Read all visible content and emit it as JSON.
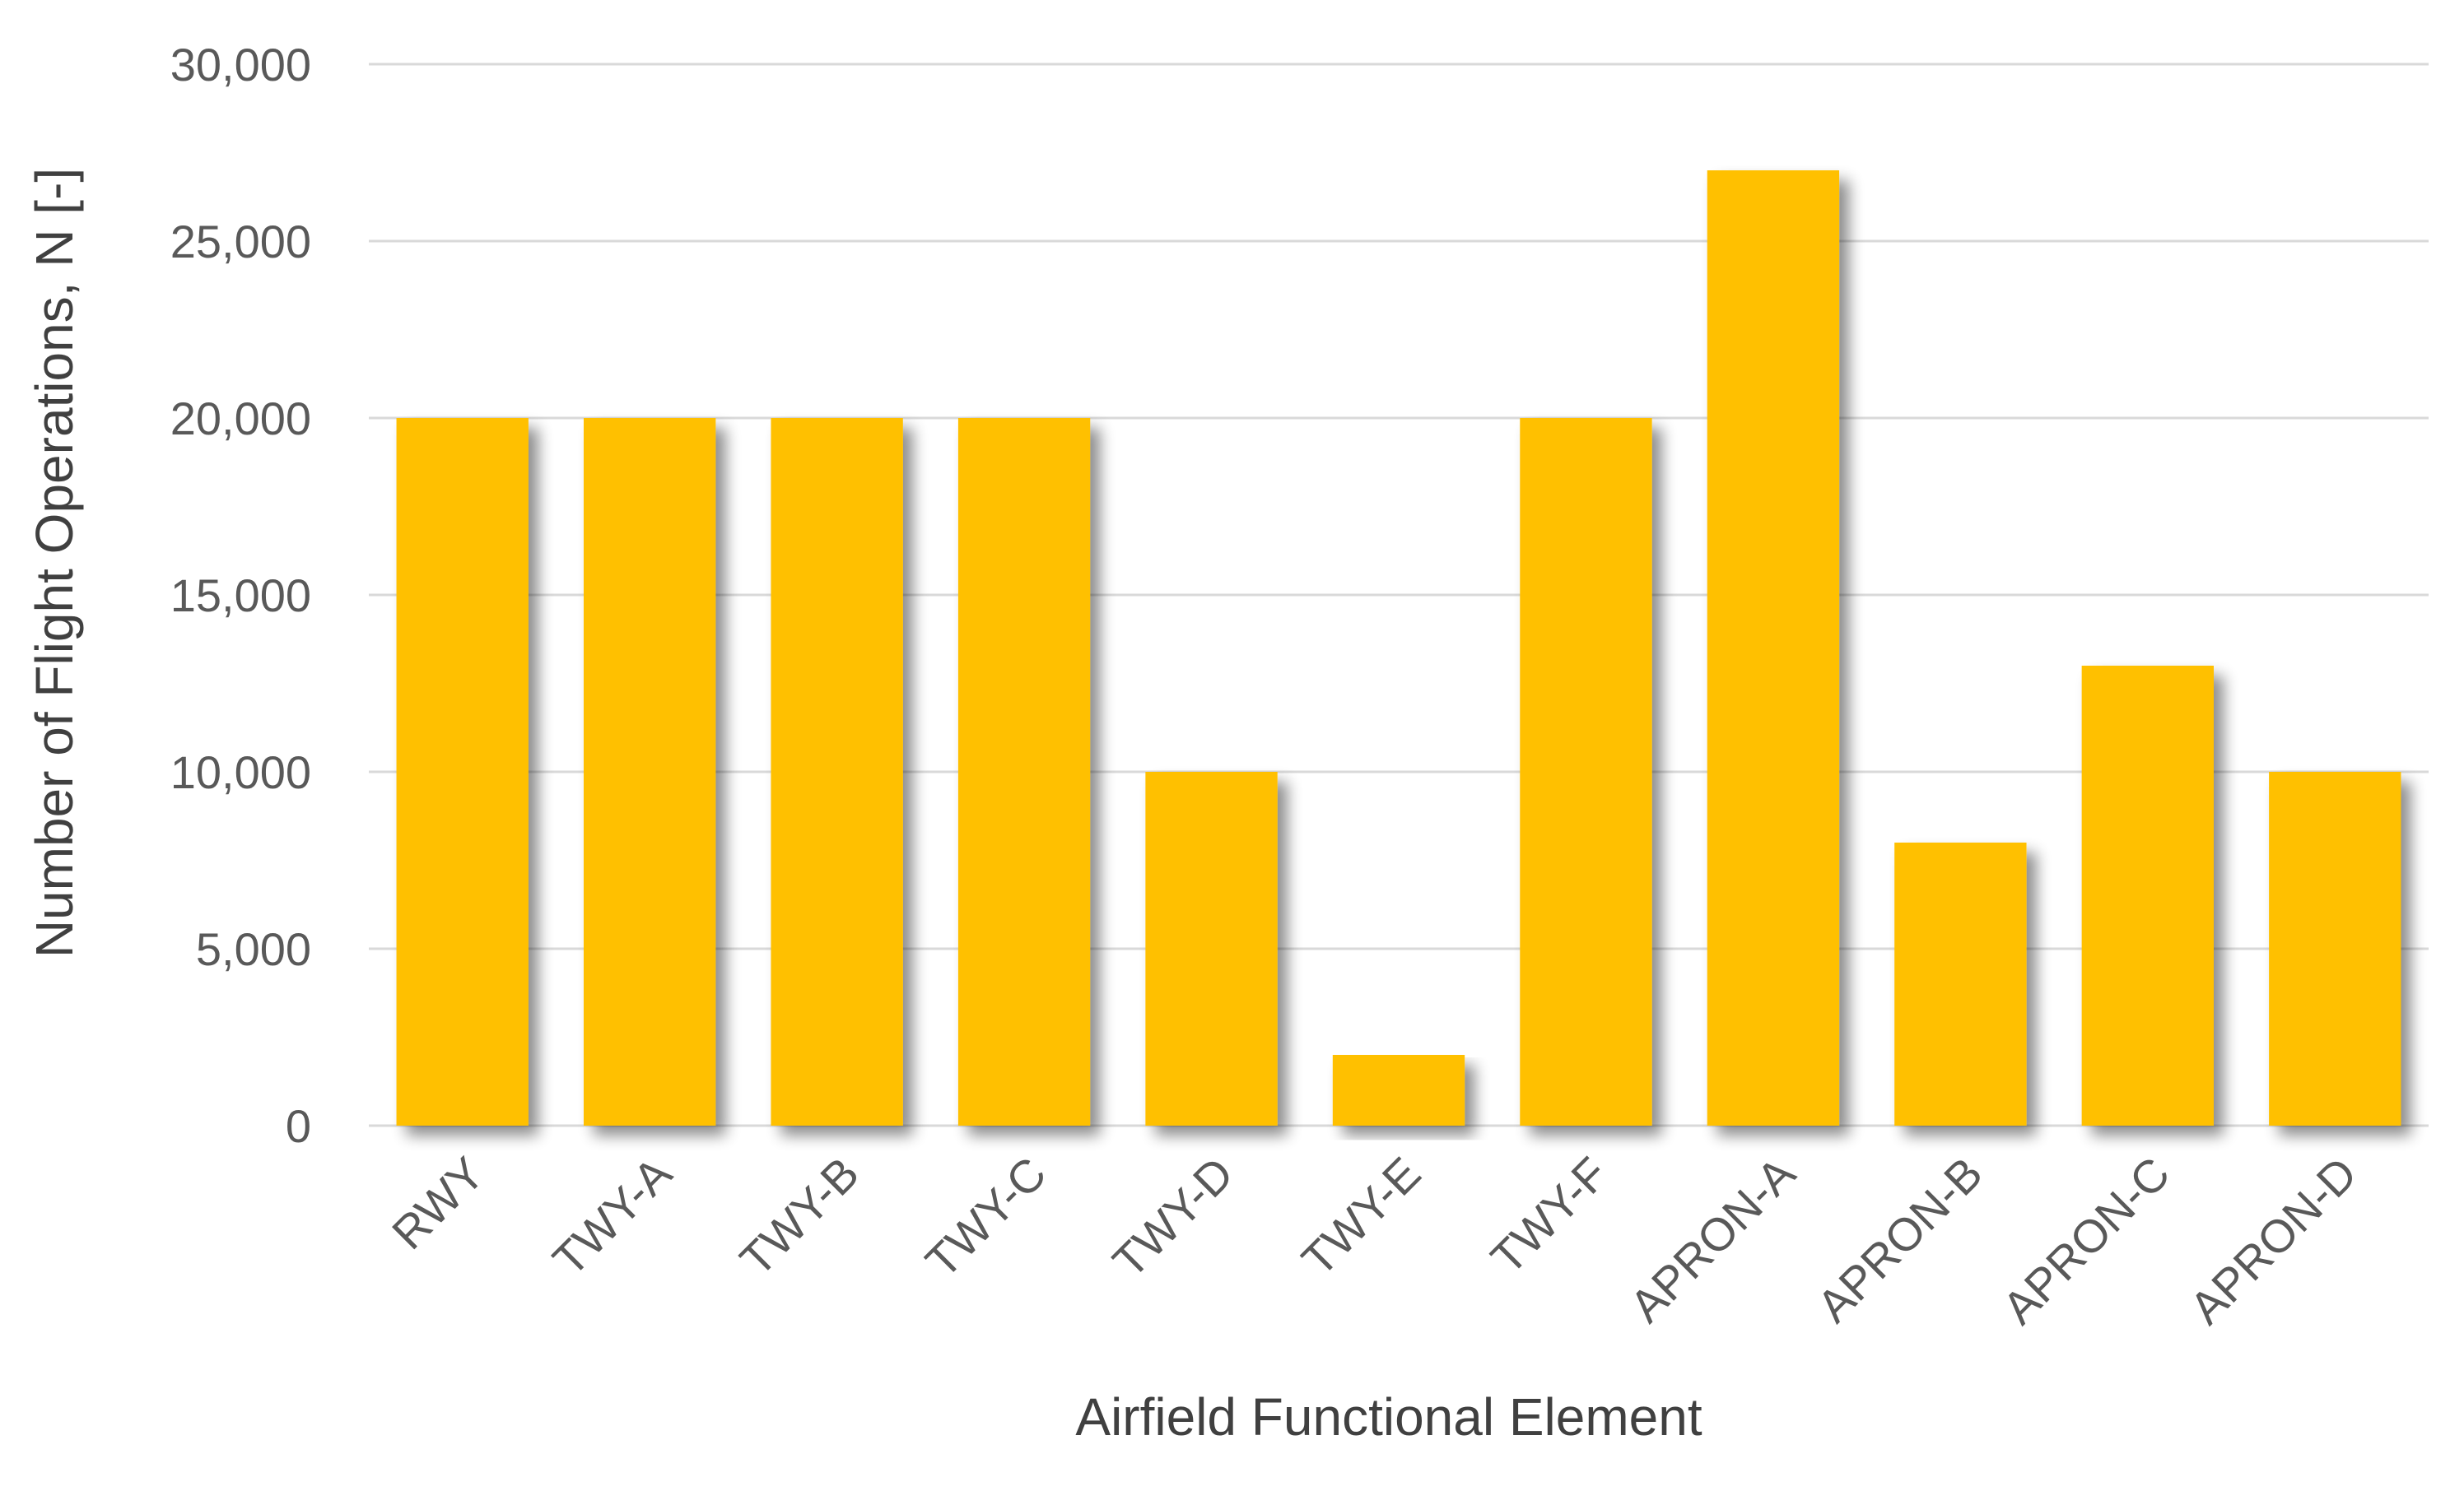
{
  "chart_data": {
    "type": "bar",
    "title": "",
    "xlabel": "Airfield Functional Element",
    "ylabel": "Number of Flight Operations, N [-]",
    "categories": [
      "RWY",
      "TWY-A",
      "TWY-B",
      "TWY-C",
      "TWY-D",
      "TWY-E",
      "TWY-F",
      "APRON-A",
      "APRON-B",
      "APRON-C",
      "APRON-D"
    ],
    "values": [
      20000,
      20000,
      20000,
      20000,
      10000,
      2000,
      20000,
      27000,
      8000,
      13000,
      10000
    ],
    "ylim": [
      0,
      30000
    ],
    "yticks": [
      0,
      5000,
      10000,
      15000,
      20000,
      25000,
      30000
    ],
    "ytick_labels": [
      "0",
      "5,000",
      "10,000",
      "15,000",
      "20,000",
      "25,000",
      "30,000"
    ],
    "grid": true,
    "legend": "none",
    "bar_color": "#FFC000",
    "grid_color": "#D9D9D9"
  }
}
